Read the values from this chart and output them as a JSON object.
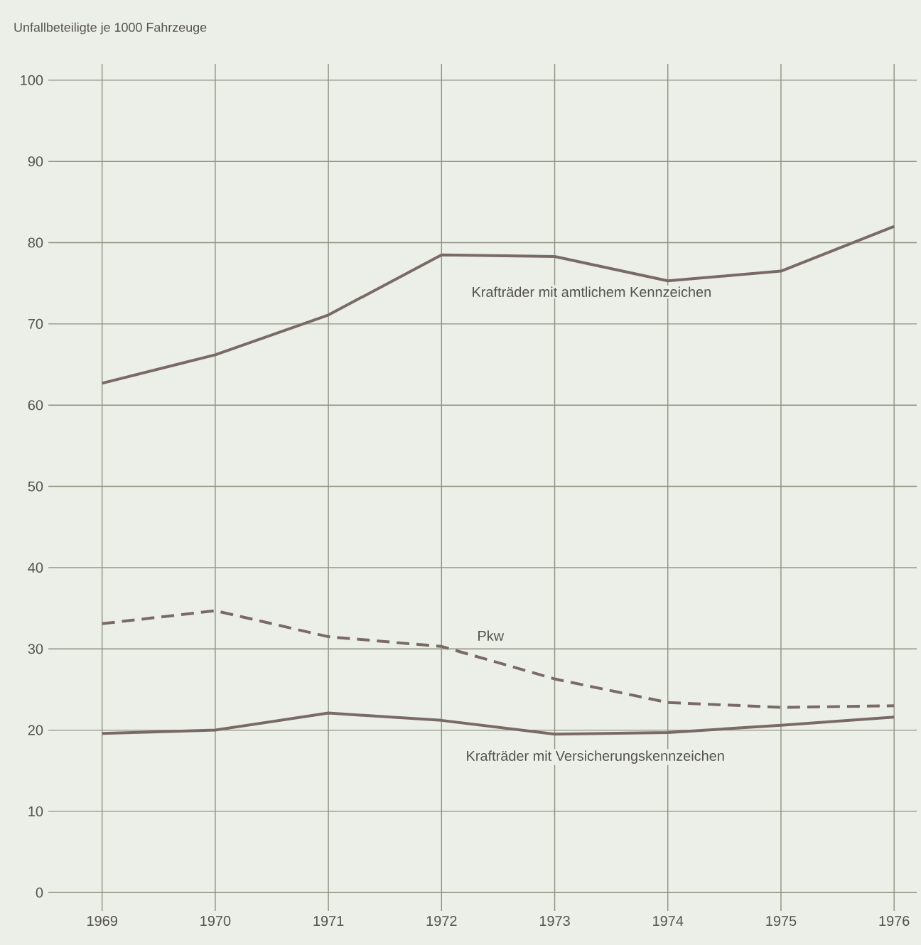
{
  "chart_data": {
    "type": "line",
    "ylabel": "Unfallbeteiligte je 1000 Fahrzeuge",
    "x": [
      1969,
      1970,
      1971,
      1972,
      1973,
      1974,
      1975,
      1976
    ],
    "xlim": [
      1968.6,
      1976.2
    ],
    "ylim": [
      -1.2,
      102
    ],
    "xticks": [
      1969,
      1970,
      1971,
      1972,
      1973,
      1974,
      1975,
      1976
    ],
    "yticks": [
      0,
      10,
      20,
      30,
      40,
      50,
      60,
      70,
      80,
      90,
      100
    ],
    "grid": true,
    "marker": "none",
    "series": [
      {
        "name": "Krafträder mit amtlichem Kennzeichen",
        "color": "#7a6a66",
        "line_style": "solid",
        "values": [
          62.7,
          66.2,
          71.1,
          78.5,
          78.3,
          75.3,
          76.5,
          82.0
        ]
      },
      {
        "name": "Pkw",
        "color": "#7a6a66",
        "line_style": "dashed",
        "values": [
          33.1,
          34.7,
          31.5,
          30.3,
          26.3,
          23.4,
          22.8,
          23.0
        ]
      },
      {
        "name": "Krafträder mit Versicherungskennzeichen",
        "color": "#7a6a66",
        "line_style": "solid",
        "values": [
          19.6,
          20.0,
          22.1,
          21.2,
          19.5,
          19.7,
          20.6,
          21.6
        ]
      }
    ]
  }
}
